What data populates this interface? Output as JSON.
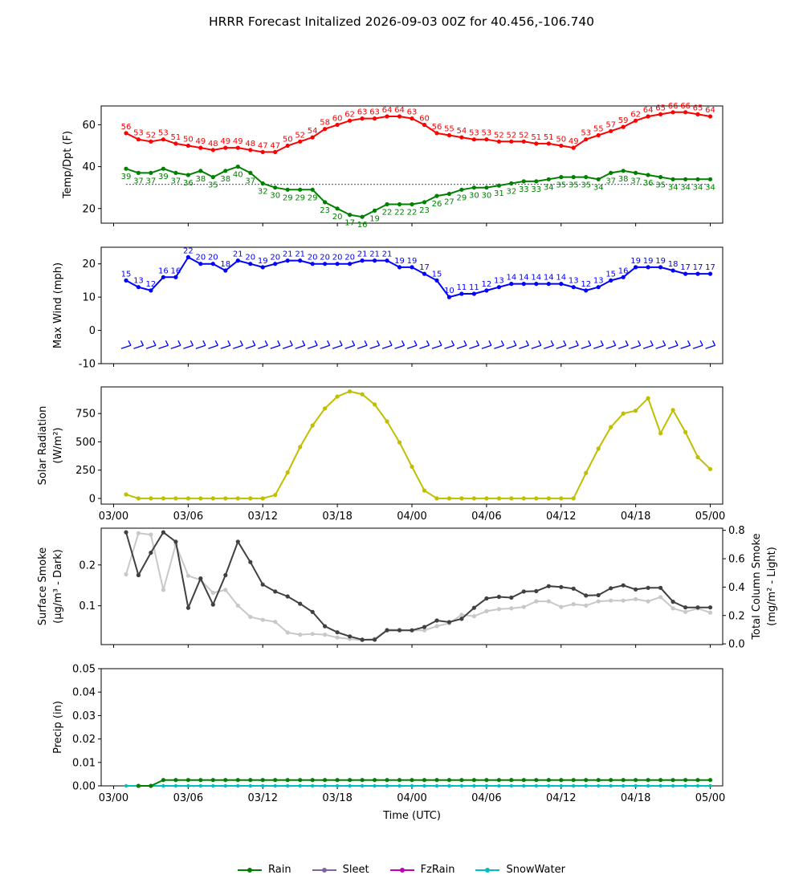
{
  "title": "HRRR Forecast Initalized 2026-09-03 00Z for 40.456,-106.740",
  "x_ticks": [
    "03/00",
    "03/06",
    "03/12",
    "03/18",
    "04/00",
    "04/06",
    "04/12",
    "04/18",
    "05/00"
  ],
  "x_axis_label": "Time (UTC)",
  "colors": {
    "temp": "#ff0000",
    "dewpoint": "#008000",
    "wind": "#0000ff",
    "solar": "#bfbf00",
    "surface_smoke": "#404040",
    "column_smoke": "#c8c8c8",
    "rain": "#008000",
    "sleet": "#8064a2",
    "fzrain": "#c000c0",
    "snow": "#00bfbf"
  },
  "legend": [
    {
      "name": "Rain",
      "color": "#008000"
    },
    {
      "name": "Sleet",
      "color": "#8064a2"
    },
    {
      "name": "FzRain",
      "color": "#c000c0"
    },
    {
      "name": "SnowWater",
      "color": "#00bfbf"
    }
  ],
  "chart_data": [
    {
      "type": "line",
      "ylabel": "Temp/Dpt (F)",
      "ylim": [
        13,
        69
      ],
      "yticks": [
        20,
        40,
        60
      ],
      "x_hours": [
        1,
        2,
        3,
        4,
        5,
        6,
        7,
        8,
        9,
        10,
        11,
        12,
        13,
        14,
        15,
        16,
        17,
        18,
        19,
        20,
        21,
        22,
        23,
        24,
        25,
        26,
        27,
        28,
        29,
        30,
        31,
        32,
        33,
        34,
        35,
        36,
        37,
        38,
        39,
        40,
        41,
        42,
        43,
        44,
        45,
        46,
        47,
        48
      ],
      "reference_line": 31.5,
      "series": [
        {
          "name": "Temp",
          "values": [
            56,
            53,
            52,
            53,
            51,
            50,
            49,
            48,
            49,
            49,
            48,
            47,
            47,
            50,
            52,
            54,
            58,
            60,
            62,
            63,
            63,
            64,
            64,
            63,
            60,
            56,
            55,
            54,
            53,
            53,
            52,
            52,
            52,
            51,
            51,
            50,
            49,
            53,
            55,
            57,
            59,
            62,
            64,
            65,
            66,
            66,
            65,
            64
          ]
        },
        {
          "name": "Dewpoint",
          "values": [
            39,
            37,
            37,
            39,
            37,
            36,
            38,
            35,
            38,
            40,
            37,
            32,
            30,
            29,
            29,
            29,
            23,
            20,
            17,
            16,
            19,
            22,
            22,
            22,
            23,
            26,
            27,
            29,
            30,
            30,
            31,
            32,
            33,
            33,
            34,
            35,
            35,
            35,
            34,
            37,
            38,
            37,
            36,
            35,
            34,
            34,
            34,
            34
          ]
        }
      ]
    },
    {
      "type": "line",
      "ylabel": "Max Wind (mph)",
      "ylim": [
        -10,
        25
      ],
      "yticks": [
        -10,
        0,
        10,
        20
      ],
      "x_hours": [
        1,
        2,
        3,
        4,
        5,
        6,
        7,
        8,
        9,
        10,
        11,
        12,
        13,
        14,
        15,
        16,
        17,
        18,
        19,
        20,
        21,
        22,
        23,
        24,
        25,
        26,
        27,
        28,
        29,
        30,
        31,
        32,
        33,
        34,
        35,
        36,
        37,
        38,
        39,
        40,
        41,
        42,
        43,
        44,
        45,
        46,
        47,
        48
      ],
      "series": [
        {
          "name": "Max Wind",
          "values": [
            15,
            13,
            12,
            16,
            16,
            22,
            20,
            20,
            18,
            21,
            20,
            19,
            20,
            21,
            21,
            20,
            20,
            20,
            20,
            21,
            21,
            21,
            19,
            19,
            17,
            15,
            10,
            11,
            11,
            12,
            13,
            14,
            14,
            14,
            14,
            14,
            13,
            12,
            13,
            15,
            16,
            19,
            19,
            19,
            18,
            17,
            17,
            17
          ]
        }
      ]
    },
    {
      "type": "line",
      "ylabel": "Solar Radiation",
      "ylabel2": "(W/m²)",
      "ylim": [
        -50,
        985
      ],
      "yticks": [
        0,
        250,
        500,
        750
      ],
      "x_hours": [
        1,
        2,
        3,
        4,
        5,
        6,
        7,
        8,
        9,
        10,
        11,
        12,
        13,
        14,
        15,
        16,
        17,
        18,
        19,
        20,
        21,
        22,
        23,
        24,
        25,
        26,
        27,
        28,
        29,
        30,
        31,
        32,
        33,
        34,
        35,
        36,
        37,
        38,
        39,
        40,
        41,
        42,
        43,
        44,
        45,
        46,
        47,
        48
      ],
      "series": [
        {
          "name": "Solar",
          "values": [
            35,
            0,
            0,
            0,
            0,
            0,
            0,
            0,
            0,
            0,
            0,
            0,
            30,
            230,
            455,
            645,
            795,
            900,
            945,
            920,
            830,
            680,
            495,
            280,
            70,
            0,
            0,
            0,
            0,
            0,
            0,
            0,
            0,
            0,
            0,
            0,
            0,
            225,
            440,
            630,
            750,
            775,
            885,
            575,
            780,
            585,
            365,
            260
          ]
        }
      ]
    },
    {
      "type": "line",
      "ylabel": "Surface Smoke",
      "ylabel2": "(μg/m³ - Dark)",
      "ylabel_right": "Total Column Smoke",
      "ylabel_right2": "(mg/m² - Light)",
      "ylim": [
        0.005,
        0.29
      ],
      "yticks": [
        0.1,
        0.2
      ],
      "ylim_right": [
        -0.005,
        0.815
      ],
      "yticks_right": [
        0.0,
        0.2,
        0.4,
        0.6,
        0.8
      ],
      "x_hours": [
        1,
        2,
        3,
        4,
        5,
        6,
        7,
        8,
        9,
        10,
        11,
        12,
        13,
        14,
        15,
        16,
        17,
        18,
        19,
        20,
        21,
        22,
        23,
        24,
        25,
        26,
        27,
        28,
        29,
        30,
        31,
        32,
        33,
        34,
        35,
        36,
        37,
        38,
        39,
        40,
        41,
        42,
        43,
        44,
        45,
        46,
        47,
        48
      ],
      "series": [
        {
          "name": "Surface Smoke",
          "values": [
            0.28,
            0.175,
            0.23,
            0.28,
            0.257,
            0.095,
            0.167,
            0.103,
            0.175,
            0.257,
            0.207,
            0.152,
            0.135,
            0.123,
            0.105,
            0.085,
            0.05,
            0.035,
            0.025,
            0.017,
            0.017,
            0.04,
            0.04,
            0.04,
            0.048,
            0.064,
            0.06,
            0.068,
            0.095,
            0.118,
            0.122,
            0.12,
            0.135,
            0.136,
            0.148,
            0.146,
            0.142,
            0.125,
            0.126,
            0.143,
            0.15,
            0.14,
            0.144,
            0.144,
            0.11,
            0.096,
            0.096,
            0.096
          ]
        },
        {
          "name": "Total Column Smoke",
          "values": [
            0.49,
            0.78,
            0.77,
            0.38,
            0.7,
            0.48,
            0.45,
            0.36,
            0.38,
            0.27,
            0.19,
            0.17,
            0.155,
            0.08,
            0.065,
            0.07,
            0.065,
            0.045,
            0.035,
            0.025,
            0.035,
            0.1,
            0.1,
            0.095,
            0.095,
            0.125,
            0.145,
            0.205,
            0.195,
            0.23,
            0.245,
            0.25,
            0.26,
            0.3,
            0.3,
            0.26,
            0.28,
            0.27,
            0.3,
            0.305,
            0.305,
            0.315,
            0.3,
            0.33,
            0.25,
            0.225,
            0.25,
            0.22
          ]
        }
      ]
    },
    {
      "type": "line",
      "ylabel": "Precip (in)",
      "ylim": [
        0,
        0.05
      ],
      "yticks": [
        0.0,
        0.01,
        0.02,
        0.03,
        0.04,
        0.05
      ],
      "x_hours": [
        1,
        2,
        3,
        4,
        5,
        6,
        7,
        8,
        9,
        10,
        11,
        12,
        13,
        14,
        15,
        16,
        17,
        18,
        19,
        20,
        21,
        22,
        23,
        24,
        25,
        26,
        27,
        28,
        29,
        30,
        31,
        32,
        33,
        34,
        35,
        36,
        37,
        38,
        39,
        40,
        41,
        42,
        43,
        44,
        45,
        46,
        47,
        48
      ],
      "series": [
        {
          "name": "Rain",
          "values": [
            0,
            0,
            0,
            0.0025,
            0.0025,
            0.0025,
            0.0025,
            0.0025,
            0.0025,
            0.0025,
            0.0025,
            0.0025,
            0.0025,
            0.0025,
            0.0025,
            0.0025,
            0.0025,
            0.0025,
            0.0025,
            0.0025,
            0.0025,
            0.0025,
            0.0025,
            0.0025,
            0.0025,
            0.0025,
            0.0025,
            0.0025,
            0.0025,
            0.0025,
            0.0025,
            0.0025,
            0.0025,
            0.0025,
            0.0025,
            0.0025,
            0.0025,
            0.0025,
            0.0025,
            0.0025,
            0.0025,
            0.0025,
            0.0025,
            0.0025,
            0.0025,
            0.0025,
            0.0025,
            0.0025
          ]
        },
        {
          "name": "SnowWater",
          "values": [
            0,
            0,
            0,
            0,
            0,
            0,
            0,
            0,
            0,
            0,
            0,
            0,
            0,
            0,
            0,
            0,
            0,
            0,
            0,
            0,
            0,
            0,
            0,
            0,
            0,
            0,
            0,
            0,
            0,
            0,
            0,
            0,
            0,
            0,
            0,
            0,
            0,
            0,
            0,
            0,
            0,
            0,
            0,
            0,
            0,
            0,
            0,
            0
          ]
        }
      ]
    }
  ]
}
